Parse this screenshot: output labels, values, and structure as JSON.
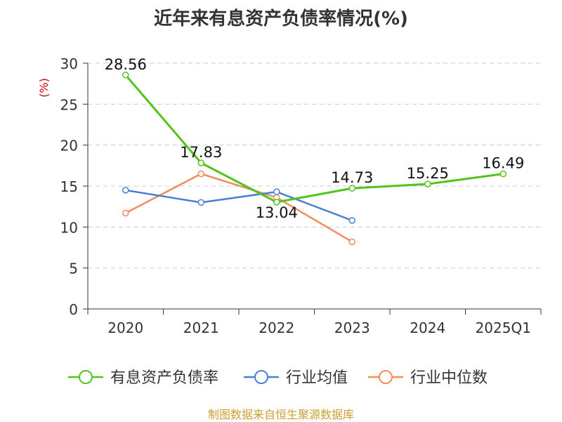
{
  "chart_data": {
    "type": "line",
    "title": "近年来有息资产负债率情况(%)",
    "ylabel": "(%)",
    "xlabel": "",
    "categories": [
      "2020",
      "2021",
      "2022",
      "2023",
      "2024",
      "2025Q1"
    ],
    "ylim": [
      0,
      30
    ],
    "yticks": [
      0,
      5,
      10,
      15,
      20,
      25,
      30
    ],
    "grid": true,
    "legend_position": "bottom",
    "series": [
      {
        "name": "有息资产负债率",
        "color": "#52c41a",
        "values": [
          28.56,
          17.83,
          13.04,
          14.73,
          15.25,
          16.49
        ],
        "labels": [
          "28.56",
          "17.83",
          "13.04",
          "14.73",
          "15.25",
          "16.49"
        ]
      },
      {
        "name": "行业均值",
        "color": "#4a7fd6",
        "values": [
          14.5,
          13.0,
          14.3,
          10.8,
          null,
          null
        ]
      },
      {
        "name": "行业中位数",
        "color": "#f28d5b",
        "values": [
          11.7,
          16.5,
          13.6,
          8.2,
          null,
          null
        ]
      }
    ]
  },
  "footer": {
    "source": "制图数据来自恒生聚源数据库"
  }
}
